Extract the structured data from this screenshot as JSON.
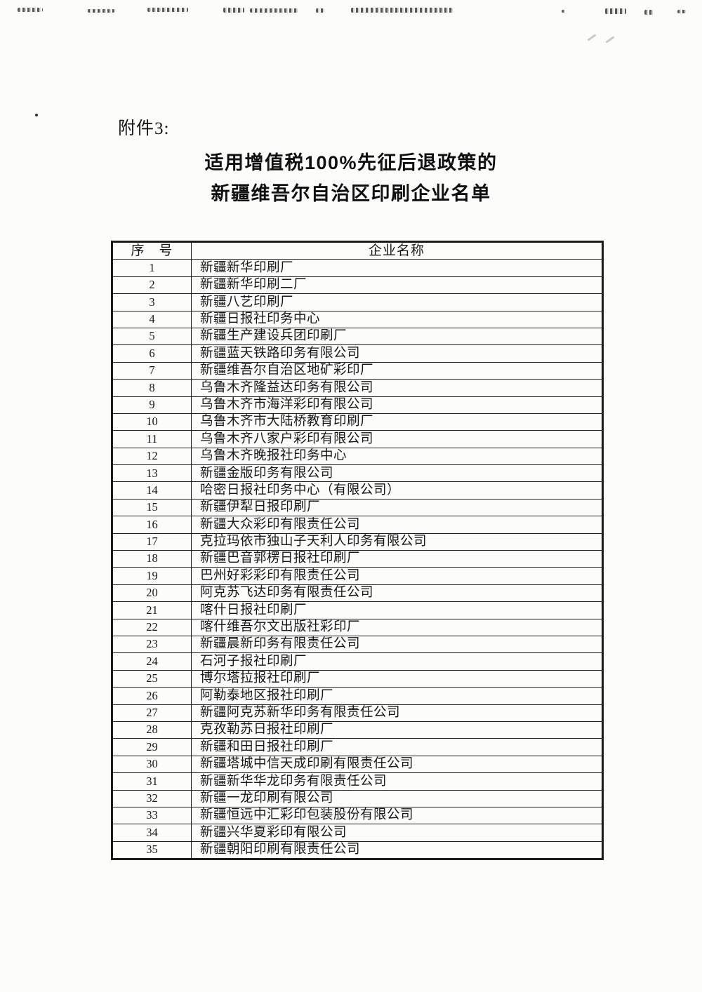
{
  "page": {
    "attachment_label": "附件3:",
    "title_line1": "适用增值税100%先征后退政策的",
    "title_line2": "新疆维吾尔自治区印刷企业名单"
  },
  "table": {
    "headers": [
      "序　号",
      "企业名称"
    ],
    "rows": [
      {
        "no": "1",
        "name": "新疆新华印刷厂"
      },
      {
        "no": "2",
        "name": "新疆新华印刷二厂"
      },
      {
        "no": "3",
        "name": "新疆八艺印刷厂"
      },
      {
        "no": "4",
        "name": "新疆日报社印务中心"
      },
      {
        "no": "5",
        "name": "新疆生产建设兵团印刷厂"
      },
      {
        "no": "6",
        "name": "新疆蓝天铁路印务有限公司"
      },
      {
        "no": "7",
        "name": "新疆维吾尔自治区地矿彩印厂"
      },
      {
        "no": "8",
        "name": "乌鲁木齐隆益达印务有限公司"
      },
      {
        "no": "9",
        "name": "乌鲁木齐市海洋彩印有限公司"
      },
      {
        "no": "10",
        "name": "乌鲁木齐市大陆桥教育印刷厂"
      },
      {
        "no": "11",
        "name": "乌鲁木齐八家户彩印有限公司"
      },
      {
        "no": "12",
        "name": "乌鲁木齐晚报社印务中心"
      },
      {
        "no": "13",
        "name": "新疆金版印务有限公司"
      },
      {
        "no": "14",
        "name": "哈密日报社印务中心（有限公司）"
      },
      {
        "no": "15",
        "name": "新疆伊犁日报印刷厂"
      },
      {
        "no": "16",
        "name": "新疆大众彩印有限责任公司"
      },
      {
        "no": "17",
        "name": "克拉玛依市独山子天利人印务有限公司"
      },
      {
        "no": "18",
        "name": "新疆巴音郭楞日报社印刷厂"
      },
      {
        "no": "19",
        "name": "巴州好彩彩印有限责任公司"
      },
      {
        "no": "20",
        "name": "阿克苏飞达印务有限责任公司"
      },
      {
        "no": "21",
        "name": "喀什日报社印刷厂"
      },
      {
        "no": "22",
        "name": "喀什维吾尔文出版社彩印厂"
      },
      {
        "no": "23",
        "name": "新疆晨新印务有限责任公司"
      },
      {
        "no": "24",
        "name": "石河子报社印刷厂"
      },
      {
        "no": "25",
        "name": "博尔塔拉报社印刷厂"
      },
      {
        "no": "26",
        "name": "阿勒泰地区报社印刷厂"
      },
      {
        "no": "27",
        "name": "新疆阿克苏新华印务有限责任公司"
      },
      {
        "no": "28",
        "name": "克孜勒苏日报社印刷厂"
      },
      {
        "no": "29",
        "name": "新疆和田日报社印刷厂"
      },
      {
        "no": "30",
        "name": "新疆塔城中信天成印刷有限责任公司"
      },
      {
        "no": "31",
        "name": "新疆新华华龙印务有限责任公司"
      },
      {
        "no": "32",
        "name": "新疆一龙印刷有限公司"
      },
      {
        "no": "33",
        "name": "新疆恒远中汇彩印包装股份有限公司"
      },
      {
        "no": "34",
        "name": "新疆兴华夏彩印有限公司"
      },
      {
        "no": "35",
        "name": "新疆朝阳印刷有限责任公司"
      }
    ]
  }
}
